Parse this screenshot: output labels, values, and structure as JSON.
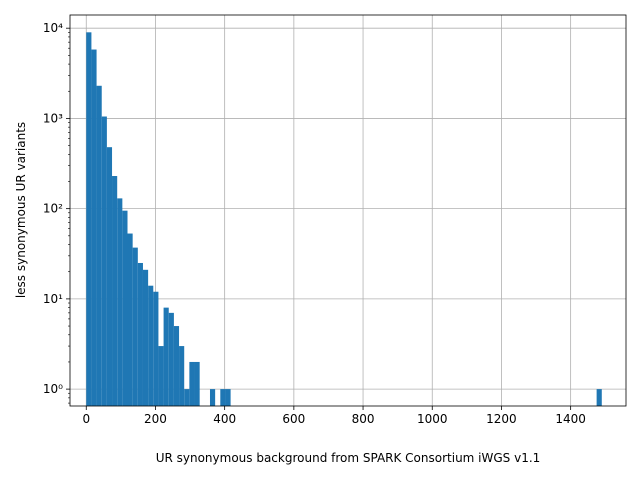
{
  "chart_data": {
    "type": "bar",
    "xlabel": "UR synonymous background from SPARK Consortium iWGS v1.1",
    "ylabel": "less synonymous UR variants",
    "x_ticks": [
      0,
      200,
      400,
      600,
      800,
      1000,
      1200,
      1400
    ],
    "y_ticks": [
      {
        "value": 1,
        "label": "10⁰"
      },
      {
        "value": 10,
        "label": "10¹"
      },
      {
        "value": 100,
        "label": "10²"
      },
      {
        "value": 1000,
        "label": "10³"
      },
      {
        "value": 10000,
        "label": "10⁴"
      }
    ],
    "xlim": [
      -47,
      1560
    ],
    "ylim": [
      0.65,
      14000
    ],
    "y_scale": "log",
    "grid": true,
    "bar_color": "#1f77b4",
    "bin_width": 14.9,
    "bins": [
      {
        "x": 0,
        "count": 9000
      },
      {
        "x": 14.9,
        "count": 5800
      },
      {
        "x": 29.8,
        "count": 2300
      },
      {
        "x": 44.7,
        "count": 1050
      },
      {
        "x": 59.6,
        "count": 480
      },
      {
        "x": 74.5,
        "count": 230
      },
      {
        "x": 89.4,
        "count": 130
      },
      {
        "x": 104.3,
        "count": 95
      },
      {
        "x": 119.2,
        "count": 53
      },
      {
        "x": 134.1,
        "count": 37
      },
      {
        "x": 149,
        "count": 25
      },
      {
        "x": 163.9,
        "count": 21
      },
      {
        "x": 178.8,
        "count": 14
      },
      {
        "x": 193.7,
        "count": 12
      },
      {
        "x": 208.6,
        "count": 3
      },
      {
        "x": 223.5,
        "count": 8
      },
      {
        "x": 238.4,
        "count": 7
      },
      {
        "x": 253.3,
        "count": 5
      },
      {
        "x": 268.2,
        "count": 3
      },
      {
        "x": 283.1,
        "count": 1
      },
      {
        "x": 298,
        "count": 2
      },
      {
        "x": 312.9,
        "count": 2
      },
      {
        "x": 357.6,
        "count": 1
      },
      {
        "x": 387.4,
        "count": 1
      },
      {
        "x": 402.3,
        "count": 1
      },
      {
        "x": 1475.1,
        "count": 1
      }
    ]
  }
}
